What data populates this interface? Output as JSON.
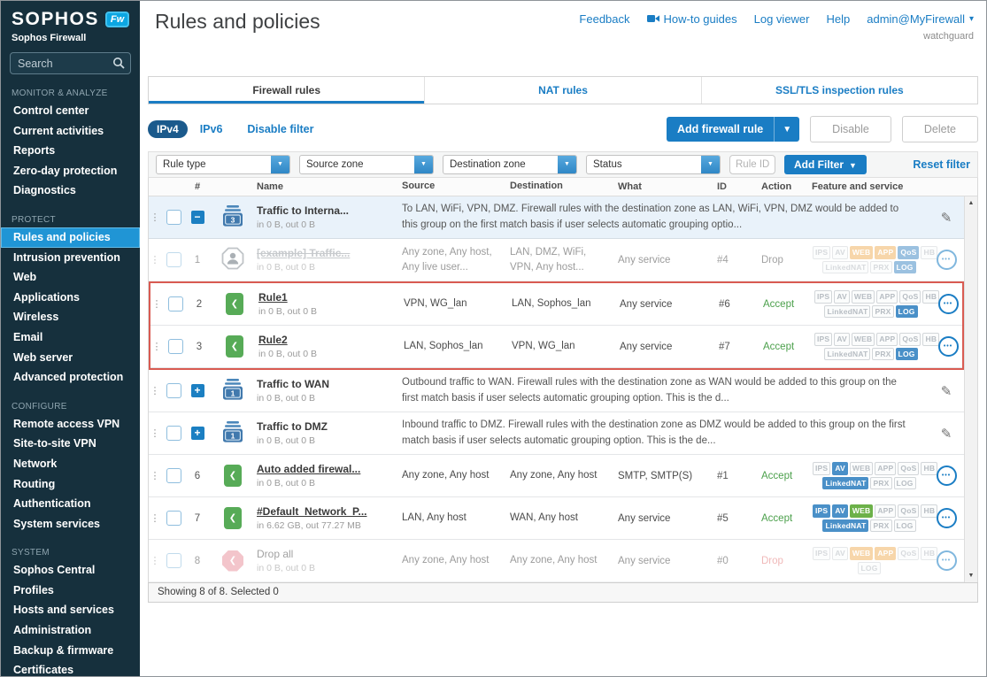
{
  "brand": {
    "logo": "SOPHOS",
    "logo_badge": "Fw",
    "product": "Sophos Firewall"
  },
  "sidebar": {
    "search_placeholder": "Search",
    "sections": [
      {
        "label": "MONITOR & ANALYZE",
        "items": [
          {
            "label": "Control center"
          },
          {
            "label": "Current activities"
          },
          {
            "label": "Reports"
          },
          {
            "label": "Zero-day protection"
          },
          {
            "label": "Diagnostics"
          }
        ]
      },
      {
        "label": "PROTECT",
        "items": [
          {
            "label": "Rules and policies",
            "selected": true
          },
          {
            "label": "Intrusion prevention"
          },
          {
            "label": "Web"
          },
          {
            "label": "Applications"
          },
          {
            "label": "Wireless"
          },
          {
            "label": "Email"
          },
          {
            "label": "Web server"
          },
          {
            "label": "Advanced protection"
          }
        ]
      },
      {
        "label": "CONFIGURE",
        "items": [
          {
            "label": "Remote access VPN"
          },
          {
            "label": "Site-to-site VPN"
          },
          {
            "label": "Network"
          },
          {
            "label": "Routing"
          },
          {
            "label": "Authentication"
          },
          {
            "label": "System services"
          }
        ]
      },
      {
        "label": "SYSTEM",
        "items": [
          {
            "label": "Sophos Central"
          },
          {
            "label": "Profiles"
          },
          {
            "label": "Hosts and services"
          },
          {
            "label": "Administration"
          },
          {
            "label": "Backup & firmware"
          },
          {
            "label": "Certificates"
          }
        ]
      }
    ]
  },
  "header": {
    "title": "Rules and policies",
    "links": [
      "Feedback",
      "How-to guides",
      "Log viewer",
      "Help"
    ],
    "user": "admin@MyFirewall",
    "user_subtext": "watchguard"
  },
  "tabs": [
    {
      "label": "Firewall rules",
      "active": true
    },
    {
      "label": "NAT rules",
      "active": false
    },
    {
      "label": "SSL/TLS inspection rules",
      "active": false
    }
  ],
  "toolbar": {
    "ipv4": "IPv4",
    "ipv6": "IPv6",
    "disable_filter": "Disable filter",
    "add_rule": "Add firewall rule",
    "disable": "Disable",
    "delete": "Delete"
  },
  "filters": {
    "dropdowns": [
      "Rule type",
      "Source zone",
      "Destination zone",
      "Status"
    ],
    "rule_id_placeholder": "Rule ID",
    "add_filter": "Add Filter",
    "reset": "Reset filter"
  },
  "table": {
    "columns": [
      "#",
      "Name",
      "Source",
      "Destination",
      "What",
      "ID",
      "Action",
      "Feature and service"
    ],
    "footer": "Showing 8 of 8. Selected 0",
    "rows": [
      {
        "kind": "group",
        "expander": "minus",
        "count": "3",
        "name": "Traffic to Interna...",
        "traffic": "in 0 B, out 0 B",
        "bg": "blue",
        "description": "To LAN, WiFi, VPN, DMZ. Firewall rules with the destination zone as LAN, WiFi, VPN, DMZ would be added to this group on the first match basis if user selects automatic grouping optio..."
      },
      {
        "kind": "rule",
        "num": "1",
        "icon": "person",
        "name": "[example] Traffic...",
        "name_style": "strike",
        "traffic": "in 0 B, out 0 B",
        "faded": true,
        "source": "Any zone, Any host, Any live user...",
        "destination": "LAN, DMZ, WiFi, VPN, Any host...",
        "what": "Any service",
        "id": "#4",
        "action": "Drop",
        "action_style": "gray",
        "badges1": [
          {
            "label": "IPS",
            "state": "off"
          },
          {
            "label": "AV",
            "state": "off"
          },
          {
            "label": "WEB",
            "state": "orange"
          },
          {
            "label": "APP",
            "state": "orange"
          },
          {
            "label": "QoS",
            "state": "blue"
          },
          {
            "label": "HB",
            "state": "off"
          }
        ],
        "badges2": [
          {
            "label": "LinkedNAT",
            "state": "off"
          },
          {
            "label": "PRX",
            "state": "off"
          },
          {
            "label": "LOG",
            "state": "blue"
          }
        ]
      },
      {
        "kind": "rule",
        "num": "2",
        "icon": "green",
        "name": "Rule1",
        "name_style": "link",
        "traffic": "in 0 B, out 0 B",
        "red_box": true,
        "source": "VPN, WG_lan",
        "destination": "LAN, Sophos_lan",
        "what": "Any service",
        "id": "#6",
        "action": "Accept",
        "action_style": "green",
        "badges1": [
          {
            "label": "IPS",
            "state": "off"
          },
          {
            "label": "AV",
            "state": "off"
          },
          {
            "label": "WEB",
            "state": "off"
          },
          {
            "label": "APP",
            "state": "off"
          },
          {
            "label": "QoS",
            "state": "off"
          },
          {
            "label": "HB",
            "state": "off"
          }
        ],
        "badges2": [
          {
            "label": "LinkedNAT",
            "state": "off"
          },
          {
            "label": "PRX",
            "state": "off"
          },
          {
            "label": "LOG",
            "state": "blue"
          }
        ]
      },
      {
        "kind": "rule",
        "num": "3",
        "icon": "green",
        "name": "Rule2",
        "name_style": "link",
        "traffic": "in 0 B, out 0 B",
        "red_box": true,
        "source": "LAN, Sophos_lan",
        "destination": "VPN, WG_lan",
        "what": "Any service",
        "id": "#7",
        "action": "Accept",
        "action_style": "green",
        "badges1": [
          {
            "label": "IPS",
            "state": "off"
          },
          {
            "label": "AV",
            "state": "off"
          },
          {
            "label": "WEB",
            "state": "off"
          },
          {
            "label": "APP",
            "state": "off"
          },
          {
            "label": "QoS",
            "state": "off"
          },
          {
            "label": "HB",
            "state": "off"
          }
        ],
        "badges2": [
          {
            "label": "LinkedNAT",
            "state": "off"
          },
          {
            "label": "PRX",
            "state": "off"
          },
          {
            "label": "LOG",
            "state": "blue"
          }
        ]
      },
      {
        "kind": "group",
        "expander": "plus",
        "count": "1",
        "name": "Traffic to WAN",
        "traffic": "in 0 B, out 0 B",
        "description": "Outbound traffic to WAN. Firewall rules with the destination zone as WAN would be added to this group on the first match basis if user selects automatic grouping option. This is the d..."
      },
      {
        "kind": "group",
        "expander": "plus",
        "count": "1",
        "name": "Traffic to DMZ",
        "traffic": "in 0 B, out 0 B",
        "description": "Inbound traffic to DMZ. Firewall rules with the destination zone as DMZ would be added to this group on the first match basis if user selects automatic grouping option. This is the de..."
      },
      {
        "kind": "rule",
        "num": "6",
        "icon": "green",
        "name": "Auto added firewal...",
        "name_style": "link",
        "traffic": "in 0 B, out 0 B",
        "source": "Any zone, Any host",
        "destination": "Any zone, Any host",
        "what": "SMTP, SMTP(S)",
        "id": "#1",
        "action": "Accept",
        "action_style": "green",
        "badges1": [
          {
            "label": "IPS",
            "state": "off"
          },
          {
            "label": "AV",
            "state": "blue"
          },
          {
            "label": "WEB",
            "state": "off"
          },
          {
            "label": "APP",
            "state": "off"
          },
          {
            "label": "QoS",
            "state": "off"
          },
          {
            "label": "HB",
            "state": "off"
          }
        ],
        "badges2": [
          {
            "label": "LinkedNAT",
            "state": "blue"
          },
          {
            "label": "PRX",
            "state": "off"
          },
          {
            "label": "LOG",
            "state": "off"
          }
        ]
      },
      {
        "kind": "rule",
        "num": "7",
        "icon": "green",
        "name": "#Default_Network_P...",
        "name_style": "link",
        "traffic": "in 6.62 GB, out 77.27 MB",
        "source": "LAN, Any host",
        "destination": "WAN, Any host",
        "what": "Any service",
        "id": "#5",
        "action": "Accept",
        "action_style": "green",
        "badges1": [
          {
            "label": "IPS",
            "state": "blue"
          },
          {
            "label": "AV",
            "state": "blue"
          },
          {
            "label": "WEB",
            "state": "green"
          },
          {
            "label": "APP",
            "state": "off"
          },
          {
            "label": "QoS",
            "state": "off"
          },
          {
            "label": "HB",
            "state": "off"
          }
        ],
        "badges2": [
          {
            "label": "LinkedNAT",
            "state": "blue"
          },
          {
            "label": "PRX",
            "state": "off"
          },
          {
            "label": "LOG",
            "state": "off"
          }
        ]
      },
      {
        "kind": "rule",
        "num": "8",
        "icon": "red",
        "name": "Drop all",
        "name_style": "plain",
        "traffic": "in 0 B, out 0 B",
        "faded": true,
        "source": "Any zone, Any host",
        "destination": "Any zone, Any host",
        "what": "Any service",
        "id": "#0",
        "action": "Drop",
        "action_style": "pink",
        "badges1": [
          {
            "label": "IPS",
            "state": "off"
          },
          {
            "label": "AV",
            "state": "off"
          },
          {
            "label": "WEB",
            "state": "orange"
          },
          {
            "label": "APP",
            "state": "orange"
          },
          {
            "label": "QoS",
            "state": "off"
          },
          {
            "label": "HB",
            "state": "off"
          }
        ],
        "badges2": [
          {
            "label": "LOG",
            "state": "off"
          }
        ]
      }
    ]
  },
  "colors": {
    "accent_blue": "#1a7dc4",
    "sidebar_bg": "#16303d",
    "sidebar_selected": "#2095d5",
    "accept_green": "#4ca04c",
    "drop_pink": "#e57f7f",
    "highlight_border": "#d95b52",
    "badge_blue": "#4a90c8",
    "badge_orange": "#f2b566",
    "badge_green": "#6cb149",
    "group_row_bg": "#e9f2fa"
  }
}
